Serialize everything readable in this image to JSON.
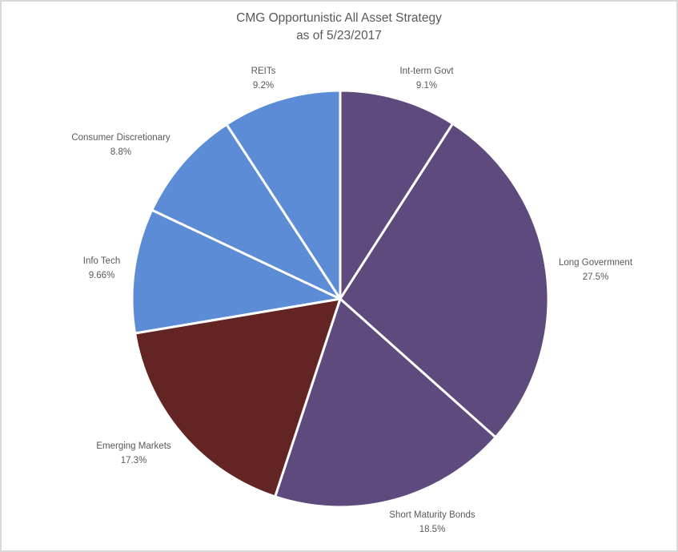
{
  "title": {
    "line1": "CMG Opportunistic All Asset Strategy",
    "line2": "as of 5/23/2017"
  },
  "chart_data": {
    "type": "pie",
    "title": "CMG Opportunistic All Asset Strategy",
    "subtitle": "as of 5/23/2017",
    "direction": "clockwise",
    "start_angle_deg_from_12oclock": 0,
    "legend": "none",
    "data_labels": "outside, category name + percentage",
    "label_color": "#595959",
    "separator_color": "#ffffff",
    "background_color": "#ffffff",
    "border_color": "#d9d9d9",
    "slices": [
      {
        "label": "Int-term Govt",
        "value_pct": 9.1,
        "display": "9.1%",
        "color": "#5f4a7d"
      },
      {
        "label": "Long Govermnent",
        "value_pct": 27.5,
        "display": "27.5%",
        "color": "#5f4a7d"
      },
      {
        "label": "Short Maturity Bonds",
        "value_pct": 18.5,
        "display": "18.5%",
        "color": "#5f4a7d"
      },
      {
        "label": "Emerging Markets",
        "value_pct": 17.3,
        "display": "17.3%",
        "color": "#632523"
      },
      {
        "label": "Info Tech",
        "value_pct": 9.66,
        "display": "9.66%",
        "color": "#5b8cd5"
      },
      {
        "label": "Consumer Discretionary",
        "value_pct": 8.8,
        "display": "8.8%",
        "color": "#5b8cd5"
      },
      {
        "label": "REITs",
        "value_pct": 9.2,
        "display": "9.2%",
        "color": "#5b8cd5"
      }
    ]
  }
}
